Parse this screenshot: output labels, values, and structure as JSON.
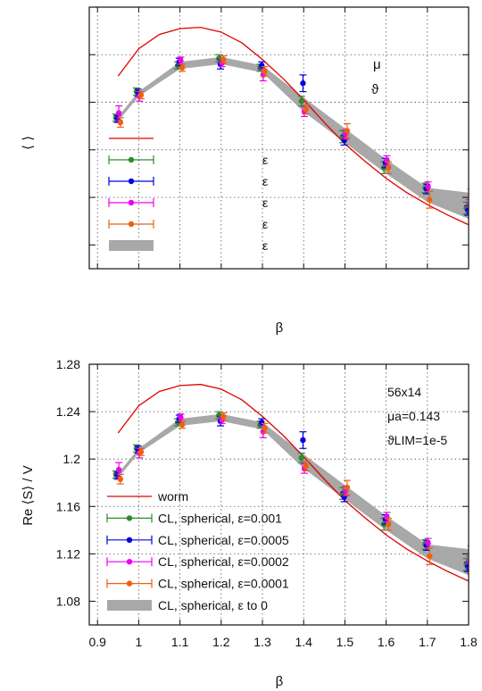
{
  "chart_data": [
    {
      "type": "line",
      "title": "",
      "xlabel": "β",
      "ylabel": "⟨ ⟩",
      "xlim": [
        0.88,
        1.8
      ],
      "ylim": [
        1.06,
        1.28
      ],
      "x_ticks": [],
      "y_ticks": [],
      "grid": true,
      "legend_position": "left",
      "annotations": [
        "μ",
        "ϑ"
      ],
      "legend": [
        {
          "label": "",
          "color": "#e00000",
          "kind": "line"
        },
        {
          "label": "ε",
          "color": "#2e8b2e",
          "kind": "errorbar"
        },
        {
          "label": "ε",
          "color": "#0000e0",
          "kind": "errorbar"
        },
        {
          "label": "ε",
          "color": "#ee00ee",
          "kind": "errorbar"
        },
        {
          "label": "ε",
          "color": "#ee6010",
          "kind": "errorbar"
        },
        {
          "label": "ε",
          "color": "#a8a8a8",
          "kind": "band"
        }
      ]
    },
    {
      "type": "line",
      "title": "",
      "xlabel": "β",
      "ylabel": "Re ⟨S⟩ / V",
      "xlim": [
        0.88,
        1.8
      ],
      "ylim": [
        1.06,
        1.28
      ],
      "x_ticks": [
        "0.9",
        "1",
        "1.1",
        "1.2",
        "1.3",
        "1.4",
        "1.5",
        "1.6",
        "1.7",
        "1.8"
      ],
      "y_ticks": [
        "1.08",
        "1.12",
        "1.16",
        "1.2",
        "1.24",
        "1.28"
      ],
      "grid": true,
      "legend_position": "bottom-left",
      "annotations": [
        "56x14",
        "μa=0.143",
        "ϑLIM=1e-5"
      ],
      "legend": [
        {
          "label": "worm",
          "color": "#e00000",
          "kind": "line"
        },
        {
          "label": "CL, spherical, ε=0.001",
          "color": "#2e8b2e",
          "kind": "errorbar"
        },
        {
          "label": "CL, spherical, ε=0.0005",
          "color": "#0000e0",
          "kind": "errorbar"
        },
        {
          "label": "CL, spherical, ε=0.0002",
          "color": "#ee00ee",
          "kind": "errorbar"
        },
        {
          "label": "CL, spherical, ε=0.0001",
          "color": "#ee6010",
          "kind": "errorbar"
        },
        {
          "label": "CL, spherical, ε to 0",
          "color": "#a8a8a8",
          "kind": "band"
        }
      ]
    }
  ],
  "series": {
    "worm": {
      "x": [
        0.95,
        1.0,
        1.05,
        1.1,
        1.15,
        1.2,
        1.25,
        1.3,
        1.35,
        1.4,
        1.45,
        1.5,
        1.55,
        1.6,
        1.65,
        1.7,
        1.75,
        1.8
      ],
      "y": [
        1.222,
        1.245,
        1.257,
        1.262,
        1.263,
        1.259,
        1.25,
        1.236,
        1.22,
        1.202,
        1.183,
        1.165,
        1.15,
        1.136,
        1.124,
        1.114,
        1.105,
        1.097
      ]
    },
    "band": {
      "x": [
        0.95,
        1.0,
        1.1,
        1.2,
        1.3,
        1.4,
        1.5,
        1.6,
        1.7,
        1.8
      ],
      "y": [
        1.186,
        1.207,
        1.231,
        1.235,
        1.228,
        1.198,
        1.172,
        1.146,
        1.122,
        1.113
      ],
      "err": [
        0.002,
        0.002,
        0.003,
        0.003,
        0.003,
        0.006,
        0.006,
        0.006,
        0.006,
        0.011
      ]
    },
    "points": [
      {
        "x": [
          0.95,
          1.0,
          1.1,
          1.2,
          1.3,
          1.4,
          1.5,
          1.6,
          1.7,
          1.8
        ],
        "y": [
          1.187,
          1.209,
          1.231,
          1.237,
          1.229,
          1.201,
          1.171,
          1.145,
          1.128,
          1.111
        ],
        "err": [
          0.003,
          0.003,
          0.003,
          0.003,
          0.003,
          0.004,
          0.005,
          0.005,
          0.004,
          0.005
        ]
      },
      {
        "x": [
          0.95,
          1.0,
          1.1,
          1.2,
          1.3,
          1.4,
          1.5,
          1.6,
          1.7,
          1.8
        ],
        "y": [
          1.186,
          1.208,
          1.234,
          1.232,
          1.231,
          1.216,
          1.168,
          1.149,
          1.127,
          1.109
        ],
        "err": [
          0.003,
          0.003,
          0.003,
          0.004,
          0.003,
          0.007,
          0.004,
          0.004,
          0.004,
          0.004
        ]
      },
      {
        "x": [
          0.95,
          1.0,
          1.1,
          1.2,
          1.3,
          1.4,
          1.5,
          1.6,
          1.7,
          1.8
        ],
        "y": [
          1.191,
          1.205,
          1.235,
          1.233,
          1.223,
          1.192,
          1.173,
          1.151,
          1.129,
          1.113
        ],
        "err": [
          0.006,
          0.004,
          0.003,
          0.003,
          0.005,
          0.004,
          0.004,
          0.004,
          0.004,
          0.005
        ]
      },
      {
        "x": [
          0.95,
          1.0,
          1.1,
          1.2,
          1.3,
          1.4,
          1.5,
          1.6,
          1.7,
          1.8
        ],
        "y": [
          1.183,
          1.206,
          1.229,
          1.236,
          1.226,
          1.194,
          1.176,
          1.145,
          1.118,
          1.115
        ],
        "err": [
          0.004,
          0.003,
          0.003,
          0.003,
          0.004,
          0.004,
          0.006,
          0.005,
          0.007,
          0.012
        ]
      }
    ]
  }
}
